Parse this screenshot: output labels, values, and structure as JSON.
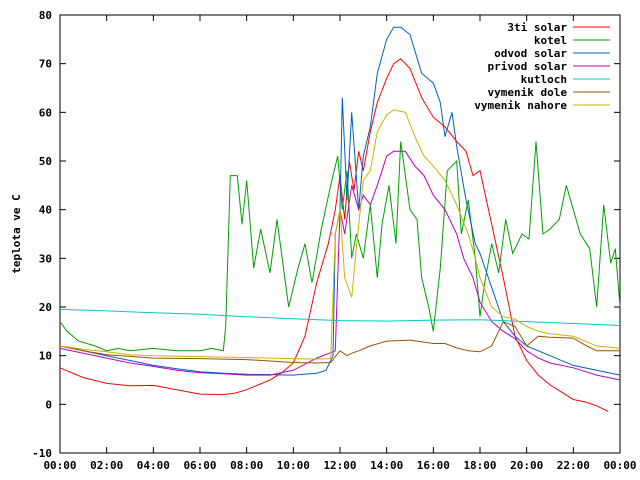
{
  "chart_data": {
    "type": "line",
    "title": "",
    "xlabel": "",
    "ylabel": "teplota ve C",
    "xlim": [
      0,
      24
    ],
    "ylim": [
      -10,
      80
    ],
    "x_ticks": [
      "00:00",
      "02:00",
      "04:00",
      "06:00",
      "08:00",
      "10:00",
      "12:00",
      "14:00",
      "16:00",
      "18:00",
      "20:00",
      "22:00",
      "00:00"
    ],
    "y_ticks": [
      -10,
      0,
      10,
      20,
      30,
      40,
      50,
      60,
      70,
      80
    ],
    "grid": false,
    "legend_position": "top-right",
    "series": [
      {
        "name": "3ti solar",
        "color": "#ff0000",
        "points": [
          [
            0,
            7.5
          ],
          [
            1,
            5.5
          ],
          [
            2,
            4.3
          ],
          [
            3,
            3.8
          ],
          [
            4,
            3.9
          ],
          [
            5,
            3.0
          ],
          [
            6,
            2.1
          ],
          [
            7,
            2.0
          ],
          [
            7.5,
            2.3
          ],
          [
            8,
            3.0
          ],
          [
            9,
            5.0
          ],
          [
            9.5,
            6.5
          ],
          [
            10,
            8.5
          ],
          [
            10.5,
            14
          ],
          [
            11,
            25
          ],
          [
            11.5,
            33
          ],
          [
            11.8,
            40
          ],
          [
            12,
            47
          ],
          [
            12.2,
            38
          ],
          [
            12.4,
            50
          ],
          [
            12.6,
            44
          ],
          [
            12.8,
            52
          ],
          [
            13,
            48
          ],
          [
            13.3,
            56
          ],
          [
            13.6,
            62
          ],
          [
            14,
            67
          ],
          [
            14.3,
            70
          ],
          [
            14.6,
            71
          ],
          [
            15,
            69
          ],
          [
            15.5,
            63
          ],
          [
            16,
            59
          ],
          [
            16.5,
            57
          ],
          [
            17,
            54
          ],
          [
            17.4,
            52
          ],
          [
            17.7,
            47
          ],
          [
            18,
            48
          ],
          [
            18.5,
            37
          ],
          [
            19,
            26
          ],
          [
            19.5,
            14
          ],
          [
            20,
            9
          ],
          [
            20.5,
            6
          ],
          [
            21,
            4
          ],
          [
            21.5,
            2.5
          ],
          [
            22,
            1
          ],
          [
            22.5,
            0.5
          ],
          [
            23,
            -0.3
          ],
          [
            23.5,
            -1.5
          ]
        ]
      },
      {
        "name": "kotel",
        "color": "#00a000",
        "points": [
          [
            0,
            17
          ],
          [
            0.3,
            15
          ],
          [
            0.8,
            13
          ],
          [
            1.5,
            12
          ],
          [
            2,
            11
          ],
          [
            2.5,
            11.5
          ],
          [
            3,
            11
          ],
          [
            4,
            11.5
          ],
          [
            5,
            11
          ],
          [
            6,
            11
          ],
          [
            6.5,
            11.5
          ],
          [
            7,
            11
          ],
          [
            7.1,
            16
          ],
          [
            7.3,
            47
          ],
          [
            7.6,
            47
          ],
          [
            7.8,
            37
          ],
          [
            8,
            46
          ],
          [
            8.3,
            28
          ],
          [
            8.6,
            36
          ],
          [
            9,
            27
          ],
          [
            9.3,
            38
          ],
          [
            9.8,
            20
          ],
          [
            10.2,
            28
          ],
          [
            10.5,
            33
          ],
          [
            10.8,
            25
          ],
          [
            11.2,
            36
          ],
          [
            11.6,
            45
          ],
          [
            11.9,
            51
          ],
          [
            12.1,
            40
          ],
          [
            12.3,
            48
          ],
          [
            12.5,
            30
          ],
          [
            12.7,
            35
          ],
          [
            13,
            30
          ],
          [
            13.3,
            41
          ],
          [
            13.6,
            26
          ],
          [
            13.8,
            37
          ],
          [
            14.1,
            45
          ],
          [
            14.4,
            33
          ],
          [
            14.6,
            54
          ],
          [
            15,
            40
          ],
          [
            15.3,
            38
          ],
          [
            15.5,
            26
          ],
          [
            15.8,
            20
          ],
          [
            16,
            15
          ],
          [
            16.3,
            28
          ],
          [
            16.6,
            48
          ],
          [
            17,
            50
          ],
          [
            17.2,
            35
          ],
          [
            17.5,
            42
          ],
          [
            17.8,
            30
          ],
          [
            18,
            18
          ],
          [
            18.2,
            25
          ],
          [
            18.5,
            33
          ],
          [
            18.8,
            27
          ],
          [
            19.1,
            38
          ],
          [
            19.4,
            31
          ],
          [
            19.8,
            35
          ],
          [
            20.1,
            34
          ],
          [
            20.4,
            54
          ],
          [
            20.7,
            35
          ],
          [
            21,
            36
          ],
          [
            21.4,
            38
          ],
          [
            21.7,
            45
          ],
          [
            22,
            40
          ],
          [
            22.3,
            35
          ],
          [
            22.7,
            32
          ],
          [
            23,
            20
          ],
          [
            23.3,
            41
          ],
          [
            23.6,
            29
          ],
          [
            23.8,
            32
          ],
          [
            24,
            20
          ]
        ]
      },
      {
        "name": "odvod solar",
        "color": "#0060c0",
        "points": [
          [
            0,
            12
          ],
          [
            1,
            11
          ],
          [
            2,
            10
          ],
          [
            3,
            9
          ],
          [
            4,
            8
          ],
          [
            5,
            7.3
          ],
          [
            6,
            6.7
          ],
          [
            7,
            6.4
          ],
          [
            8,
            6.2
          ],
          [
            9,
            6.1
          ],
          [
            10,
            6
          ],
          [
            11,
            6.4
          ],
          [
            11.4,
            7
          ],
          [
            11.7,
            10
          ],
          [
            11.8,
            35
          ],
          [
            12,
            40
          ],
          [
            12.1,
            63
          ],
          [
            12.3,
            42
          ],
          [
            12.5,
            60
          ],
          [
            12.8,
            40
          ],
          [
            13,
            51
          ],
          [
            13.3,
            57
          ],
          [
            13.6,
            68
          ],
          [
            14,
            75
          ],
          [
            14.3,
            77.5
          ],
          [
            14.6,
            77.5
          ],
          [
            15,
            76
          ],
          [
            15.5,
            68
          ],
          [
            16,
            66
          ],
          [
            16.3,
            62
          ],
          [
            16.5,
            55
          ],
          [
            16.8,
            60
          ],
          [
            17,
            53
          ],
          [
            17.4,
            42
          ],
          [
            17.8,
            33
          ],
          [
            18,
            31
          ],
          [
            18.5,
            24
          ],
          [
            19,
            17
          ],
          [
            19.5,
            14
          ],
          [
            20,
            12
          ],
          [
            21,
            10
          ],
          [
            22,
            8
          ],
          [
            23,
            7
          ],
          [
            24,
            6
          ]
        ]
      },
      {
        "name": "privod solar",
        "color": "#c000c0",
        "points": [
          [
            0,
            11.5
          ],
          [
            1,
            10.5
          ],
          [
            2,
            9.5
          ],
          [
            3,
            8.5
          ],
          [
            4,
            7.8
          ],
          [
            5,
            7
          ],
          [
            6,
            6.5
          ],
          [
            7,
            6.3
          ],
          [
            8,
            6
          ],
          [
            9,
            6
          ],
          [
            10,
            7
          ],
          [
            11,
            9.5
          ],
          [
            11.8,
            11
          ],
          [
            12,
            40
          ],
          [
            12.2,
            35
          ],
          [
            12.5,
            45
          ],
          [
            12.8,
            40
          ],
          [
            13,
            43
          ],
          [
            13.3,
            41
          ],
          [
            13.6,
            45
          ],
          [
            14,
            51
          ],
          [
            14.3,
            52
          ],
          [
            14.8,
            52
          ],
          [
            15.2,
            49
          ],
          [
            15.6,
            47
          ],
          [
            16,
            43
          ],
          [
            16.5,
            40
          ],
          [
            17,
            35
          ],
          [
            17.3,
            30
          ],
          [
            17.7,
            26
          ],
          [
            18,
            21
          ],
          [
            18.5,
            17
          ],
          [
            19,
            15
          ],
          [
            19.5,
            13.5
          ],
          [
            20,
            11
          ],
          [
            20.5,
            9.5
          ],
          [
            21,
            8.5
          ],
          [
            22,
            7.5
          ],
          [
            23,
            6
          ],
          [
            24,
            5
          ]
        ]
      },
      {
        "name": "kutloch",
        "color": "#00c8c8",
        "points": [
          [
            0,
            19.5
          ],
          [
            2,
            19.2
          ],
          [
            4,
            18.8
          ],
          [
            6,
            18.5
          ],
          [
            8,
            18
          ],
          [
            10,
            17.6
          ],
          [
            12,
            17.2
          ],
          [
            14,
            17.1
          ],
          [
            16,
            17.3
          ],
          [
            18,
            17.4
          ],
          [
            20,
            17
          ],
          [
            22,
            16.6
          ],
          [
            24,
            16.2
          ]
        ]
      },
      {
        "name": "vymenik dole",
        "color": "#a05000",
        "points": [
          [
            0,
            12
          ],
          [
            1,
            11
          ],
          [
            2,
            10.2
          ],
          [
            4,
            9.5
          ],
          [
            6,
            9.4
          ],
          [
            8,
            9.2
          ],
          [
            10,
            8.6
          ],
          [
            11,
            8.5
          ],
          [
            11.6,
            8.6
          ],
          [
            12,
            11
          ],
          [
            12.3,
            10
          ],
          [
            12.5,
            10.5
          ],
          [
            12.8,
            11
          ],
          [
            13.3,
            12
          ],
          [
            14,
            13
          ],
          [
            15,
            13.2
          ],
          [
            16,
            12.5
          ],
          [
            16.5,
            12.5
          ],
          [
            17,
            11.6
          ],
          [
            17.5,
            11
          ],
          [
            18,
            10.8
          ],
          [
            18.5,
            12
          ],
          [
            19,
            17
          ],
          [
            19.5,
            16
          ],
          [
            20,
            12
          ],
          [
            20.5,
            14
          ],
          [
            21,
            13.8
          ],
          [
            22,
            13.6
          ],
          [
            22.5,
            12.2
          ],
          [
            23,
            11
          ],
          [
            24,
            11
          ]
        ]
      },
      {
        "name": "vymenik nahore",
        "color": "#c8b400",
        "points": [
          [
            0,
            12
          ],
          [
            1,
            11.3
          ],
          [
            2,
            10.8
          ],
          [
            3,
            10.2
          ],
          [
            4,
            10
          ],
          [
            6,
            9.8
          ],
          [
            8,
            9.6
          ],
          [
            10,
            9.4
          ],
          [
            11,
            9.3
          ],
          [
            11.6,
            9.4
          ],
          [
            11.8,
            35
          ],
          [
            12,
            40
          ],
          [
            12.2,
            26
          ],
          [
            12.5,
            22
          ],
          [
            12.7,
            32
          ],
          [
            13,
            46
          ],
          [
            13.3,
            48
          ],
          [
            13.6,
            56
          ],
          [
            14,
            59.5
          ],
          [
            14.3,
            60.5
          ],
          [
            14.8,
            60
          ],
          [
            15.3,
            54
          ],
          [
            15.6,
            51
          ],
          [
            16,
            49
          ],
          [
            16.5,
            46
          ],
          [
            17,
            41
          ],
          [
            17.5,
            35
          ],
          [
            17.8,
            30
          ],
          [
            18,
            26
          ],
          [
            18.5,
            20
          ],
          [
            19,
            18
          ],
          [
            19.5,
            17.5
          ],
          [
            20,
            16
          ],
          [
            20.5,
            15
          ],
          [
            21,
            14.5
          ],
          [
            22,
            14
          ],
          [
            23,
            12
          ],
          [
            24,
            11.5
          ]
        ]
      }
    ]
  }
}
